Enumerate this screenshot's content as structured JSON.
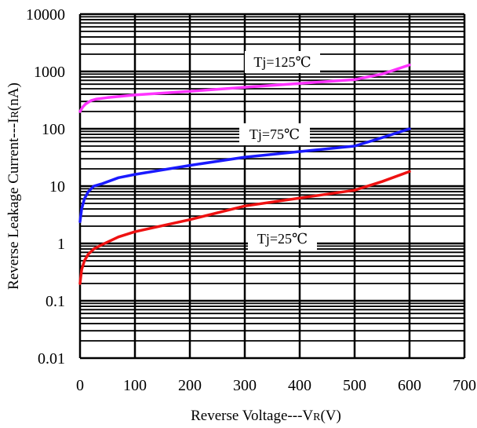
{
  "chart_data": {
    "type": "line",
    "xlabel_main": "Reverse Voltage---V",
    "xlabel_sub": "R",
    "xlabel_unit": "(V)",
    "ylabel_main": "Reverse Leakage Current---I",
    "ylabel_sub": "R",
    "ylabel_unit": "(nA)",
    "x_ticks": [
      "0",
      "100",
      "200",
      "300",
      "400",
      "500",
      "600",
      "700"
    ],
    "y_ticks": [
      "0.01",
      "0.1",
      "1",
      "10",
      "100",
      "1000",
      "10000"
    ],
    "xlim": [
      0,
      700
    ],
    "ylim": [
      0.01,
      10000
    ],
    "y_scale": "log",
    "grid": true,
    "series": [
      {
        "name": "Tj=125℃",
        "color": "#ff33ff",
        "x": [
          0,
          5,
          10,
          20,
          30,
          50,
          100,
          200,
          300,
          400,
          500,
          550,
          600
        ],
        "y": [
          200,
          240,
          270,
          310,
          330,
          350,
          390,
          450,
          530,
          620,
          720,
          900,
          1300
        ]
      },
      {
        "name": "Tj=75℃",
        "color": "#1a1aff",
        "x": [
          0,
          3,
          8,
          15,
          25,
          40,
          70,
          100,
          200,
          300,
          400,
          500,
          550,
          600
        ],
        "y": [
          2.4,
          4,
          6,
          8,
          10,
          11,
          14,
          16,
          23,
          32,
          40,
          50,
          70,
          100
        ]
      },
      {
        "name": "Tj=25℃",
        "color": "#ee1111",
        "x": [
          0,
          3,
          8,
          15,
          25,
          40,
          70,
          100,
          200,
          300,
          400,
          500,
          550,
          600
        ],
        "y": [
          0.2,
          0.35,
          0.5,
          0.65,
          0.8,
          0.95,
          1.3,
          1.6,
          2.6,
          4.5,
          6.2,
          8.5,
          12,
          18
        ]
      }
    ]
  }
}
